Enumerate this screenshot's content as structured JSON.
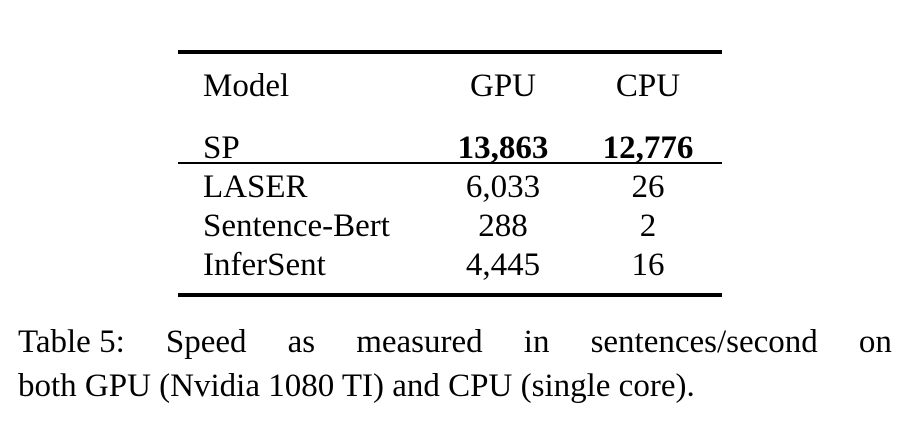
{
  "table": {
    "columns": [
      "Model",
      "GPU",
      "CPU"
    ],
    "rows": [
      {
        "model": "SP",
        "gpu": "13,863",
        "cpu": "12,776"
      },
      {
        "model": "LASER",
        "gpu": "6,033",
        "cpu": "26"
      },
      {
        "model": "Sentence-Bert",
        "gpu": "288",
        "cpu": "2"
      },
      {
        "model": "InferSent",
        "gpu": "4,445",
        "cpu": "16"
      }
    ]
  },
  "caption": {
    "label": "Table 5:",
    "line1_words": [
      "Speed",
      "as",
      "measured",
      "in",
      "sentences/second",
      "on"
    ],
    "line2": "both GPU (Nvidia 1080 TI) and CPU (single core)."
  }
}
